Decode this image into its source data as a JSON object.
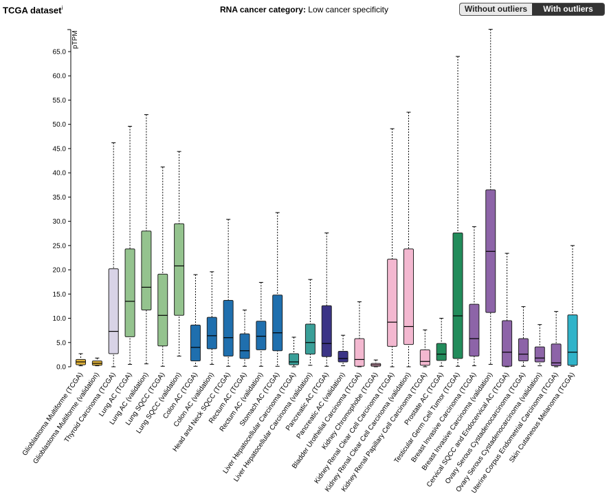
{
  "header": {
    "title": "TCGA dataset",
    "info_marker": "i",
    "category_label": "RNA cancer category:",
    "category_value": "Low cancer specificity",
    "toggle_without": "Without outliers",
    "toggle_with": "With outliers",
    "active_toggle": "With outliers"
  },
  "chart_data": {
    "type": "box",
    "ylabel": "pTPM",
    "ylim": [
      0,
      70
    ],
    "yticks": [
      "0.0",
      "5.0",
      "10.0",
      "15.0",
      "20.0",
      "25.0",
      "30.0",
      "35.0",
      "40.0",
      "45.0",
      "50.0",
      "55.0",
      "60.0",
      "65.0"
    ],
    "grid": false,
    "boxes": [
      {
        "label": "Glioblastoma Multiforme (TCGA)",
        "min": 0.2,
        "q1": 0.4,
        "median": 1.0,
        "q3": 1.5,
        "max": 2.7,
        "color": "#e0b33c"
      },
      {
        "label": "Glioblastoma Multiforme (validation)",
        "min": 0.2,
        "q1": 0.3,
        "median": 0.7,
        "q3": 1.2,
        "max": 1.8,
        "color": "#e0b33c"
      },
      {
        "label": "Thyroid Carcinoma (TCGA)",
        "min": 0.0,
        "q1": 2.7,
        "median": 7.3,
        "q3": 20.2,
        "max": 46.2,
        "color": "#d8d3e6"
      },
      {
        "label": "Lung AC (TCGA)",
        "min": 0.5,
        "q1": 6.2,
        "median": 13.5,
        "q3": 24.3,
        "max": 49.6,
        "color": "#94c38e"
      },
      {
        "label": "Lung AC (validation)",
        "min": 0.6,
        "q1": 11.7,
        "median": 16.4,
        "q3": 28.0,
        "max": 52.0,
        "color": "#94c38e"
      },
      {
        "label": "Lung SQCC (TCGA)",
        "min": 0.1,
        "q1": 4.3,
        "median": 10.6,
        "q3": 19.1,
        "max": 41.2,
        "color": "#94c38e"
      },
      {
        "label": "Lung SQCC (validation)",
        "min": 2.2,
        "q1": 10.6,
        "median": 20.8,
        "q3": 29.5,
        "max": 44.4,
        "color": "#94c38e"
      },
      {
        "label": "Colon AC (TCGA)",
        "min": 0.1,
        "q1": 1.2,
        "median": 4.0,
        "q3": 8.6,
        "max": 19.0,
        "color": "#1f6fae"
      },
      {
        "label": "Colon AC (validation)",
        "min": 0.5,
        "q1": 3.7,
        "median": 6.4,
        "q3": 10.2,
        "max": 19.6,
        "color": "#1f6fae"
      },
      {
        "label": "Head and Neck SQCC (TCGA)",
        "min": 0.1,
        "q1": 2.2,
        "median": 6.0,
        "q3": 13.7,
        "max": 30.4,
        "color": "#1f6fae"
      },
      {
        "label": "Rectum AC (TCGA)",
        "min": 0.1,
        "q1": 1.7,
        "median": 3.3,
        "q3": 6.8,
        "max": 11.7,
        "color": "#1f6fae"
      },
      {
        "label": "Rectum AC (validation)",
        "min": 0.1,
        "q1": 3.5,
        "median": 6.3,
        "q3": 9.4,
        "max": 17.4,
        "color": "#1f6fae"
      },
      {
        "label": "Stomach AC (TCGA)",
        "min": 0.1,
        "q1": 3.3,
        "median": 7.0,
        "q3": 14.8,
        "max": 31.8,
        "color": "#1f6fae"
      },
      {
        "label": "Liver Hepatocellular Carcinoma (TCGA)",
        "min": 0.0,
        "q1": 0.4,
        "median": 1.0,
        "q3": 2.7,
        "max": 6.1,
        "color": "#3a9f98"
      },
      {
        "label": "Liver Hepatocellular Carcinoma (validation)",
        "min": 0.3,
        "q1": 2.6,
        "median": 5.0,
        "q3": 8.8,
        "max": 18.0,
        "color": "#3a9f98"
      },
      {
        "label": "Pancreatic AC (TCGA)",
        "min": 0.1,
        "q1": 2.1,
        "median": 4.8,
        "q3": 12.6,
        "max": 27.6,
        "color": "#3b3486"
      },
      {
        "label": "Pancreatic AC (validation)",
        "min": 0.2,
        "q1": 1.0,
        "median": 1.7,
        "q3": 3.2,
        "max": 6.5,
        "color": "#3b3486"
      },
      {
        "label": "Bladder Urothelial Carcinoma (TCGA)",
        "min": 0.0,
        "q1": 0.1,
        "median": 1.5,
        "q3": 5.8,
        "max": 13.4,
        "color": "#f3b8d0"
      },
      {
        "label": "Kidney Chromophobe (TCGA)",
        "min": 0.0,
        "q1": 0.1,
        "median": 0.4,
        "q3": 0.7,
        "max": 1.4,
        "color": "#f3b8d0"
      },
      {
        "label": "Kidney Renal Clear Cell Carcinoma (TCGA)",
        "min": 0.0,
        "q1": 4.2,
        "median": 9.2,
        "q3": 22.2,
        "max": 49.1,
        "color": "#f3b8d0"
      },
      {
        "label": "Kidney Renal Clear Cell Carcinoma (validation)",
        "min": 0.0,
        "q1": 4.6,
        "median": 8.3,
        "q3": 24.3,
        "max": 52.5,
        "color": "#f3b8d0"
      },
      {
        "label": "Kidney Renal Papillary Cell Carcinoma (TCGA)",
        "min": 0.0,
        "q1": 0.3,
        "median": 1.1,
        "q3": 3.5,
        "max": 7.6,
        "color": "#f3b8d0"
      },
      {
        "label": "Prostate AC (TCGA)",
        "min": 0.1,
        "q1": 1.3,
        "median": 2.6,
        "q3": 4.8,
        "max": 10.0,
        "color": "#228c5b"
      },
      {
        "label": "Testicular Germ Cell Tumor (TCGA)",
        "min": 0.1,
        "q1": 1.7,
        "median": 10.5,
        "q3": 27.6,
        "max": 64.0,
        "color": "#228c5b"
      },
      {
        "label": "Breast Invasive Carcinoma (TCGA)",
        "min": 0.2,
        "q1": 2.2,
        "median": 5.8,
        "q3": 12.9,
        "max": 28.9,
        "color": "#8d64a8"
      },
      {
        "label": "Breast Invasive Carcinoma (validation)",
        "min": 0.5,
        "q1": 11.2,
        "median": 23.8,
        "q3": 36.5,
        "max": 69.6,
        "color": "#8d64a8"
      },
      {
        "label": "Cervical SQCC and Endocervical AC (TCGA)",
        "min": 0.0,
        "q1": 0.1,
        "median": 3.0,
        "q3": 9.5,
        "max": 23.4,
        "color": "#8d64a8"
      },
      {
        "label": "Ovary Serous Cystadenocarcinoma (TCGA)",
        "min": 0.1,
        "q1": 1.2,
        "median": 2.6,
        "q3": 5.8,
        "max": 12.4,
        "color": "#8d64a8"
      },
      {
        "label": "Ovary Serous Cystadenocarcinoma (validation)",
        "min": 0.2,
        "q1": 1.0,
        "median": 1.8,
        "q3": 4.1,
        "max": 8.7,
        "color": "#8d64a8"
      },
      {
        "label": "Uterine Corpus Endometrial Carcinoma (TCGA)",
        "min": 0.0,
        "q1": 0.2,
        "median": 0.8,
        "q3": 4.7,
        "max": 11.4,
        "color": "#8d64a8"
      },
      {
        "label": "Skin Cutaneous Melanoma (TCGA)",
        "min": 0.1,
        "q1": 0.3,
        "median": 3.0,
        "q3": 10.7,
        "max": 25.0,
        "color": "#30b3c9"
      }
    ]
  }
}
